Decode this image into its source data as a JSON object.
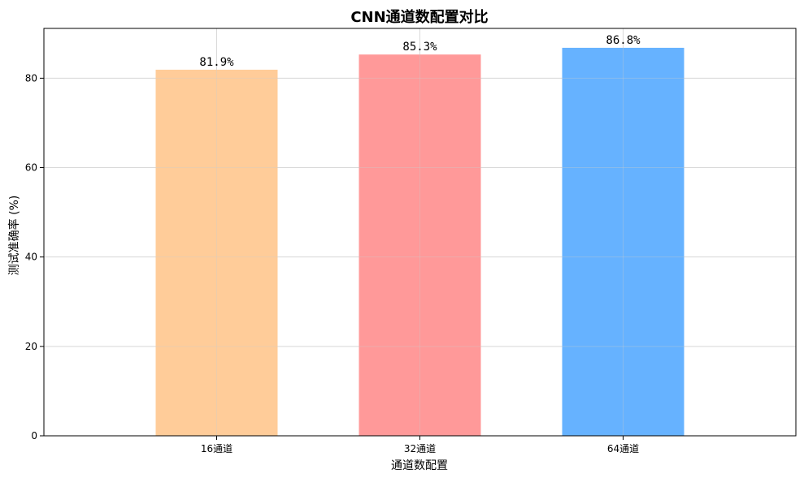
{
  "chart_data": {
    "type": "bar",
    "title": "CNN通道数配置对比",
    "xlabel": "通道数配置",
    "ylabel": "测试准确率 (%)",
    "categories": [
      "16通道",
      "32通道",
      "64通道"
    ],
    "values": [
      81.9,
      85.3,
      86.8
    ],
    "data_labels": [
      "81.9%",
      "85.3%",
      "86.8%"
    ],
    "colors": [
      "#FFCC99",
      "#FF9999",
      "#66B2FF"
    ],
    "ylim": [
      0,
      91.14
    ],
    "yticks": [
      0,
      20,
      40,
      60,
      80
    ],
    "grid": true,
    "legend": "none"
  }
}
